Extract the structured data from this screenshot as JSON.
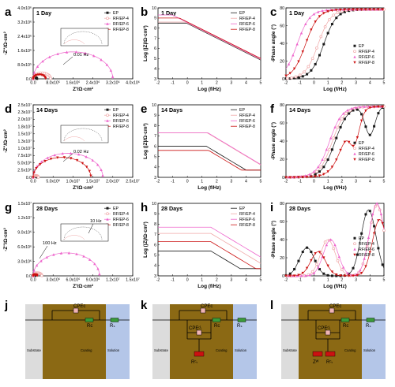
{
  "panel_letters": [
    "a",
    "b",
    "c",
    "d",
    "e",
    "f",
    "g",
    "h",
    "i",
    "j",
    "k",
    "l"
  ],
  "legend": [
    "EP",
    "RF/EP-4",
    "RF/EP-6",
    "RF/EP-8"
  ],
  "colors": {
    "EP": "#1a1a1a",
    "RF/EP-4": "#f0a8a8",
    "RF/EP-6": "#ee66cc",
    "RF/EP-8": "#cc1111",
    "substrate": "#dcdcdc",
    "coating": "#8b6914",
    "solution": "#b4c6e8",
    "resistor": "#3a9a3a",
    "cap_fill": "#f0b4b4"
  },
  "nyquist_ticks": {
    "a": {
      "x": [
        "0.0",
        "8.0x10⁵",
        "1.6x10⁶",
        "2.4x10⁶",
        "3.2x10⁶",
        "4.0x10⁶"
      ],
      "y": [
        "0.0",
        "8.0x10⁵",
        "1.6x10⁶",
        "2.4x10⁶",
        "3.2x10⁶",
        "4.0x10⁶"
      ]
    },
    "d": {
      "x": [
        "0.0",
        "5.0x10⁶",
        "1.0x10⁷",
        "1.5x10⁷",
        "2.0x10⁷",
        "2.5x10⁷"
      ],
      "y": [
        "0.0",
        "2.5x10⁶",
        "5.0x10⁶",
        "7.5x10⁶",
        "1.0x10⁷",
        "1.3x10⁷",
        "1.5x10⁷",
        "1.8x10⁷",
        "2.0x10⁷",
        "2.3x10⁷",
        "2.5x10⁷"
      ]
    },
    "g": {
      "x": [
        "0.0",
        "3.0x10⁶",
        "6.0x10⁶",
        "9.0x10⁶",
        "1.2x10⁷",
        "1.5x10⁷"
      ],
      "y": [
        "0.0",
        "3.0x10⁶",
        "6.0x10⁶",
        "9.0x10⁶",
        "1.2x10⁷",
        "1.5x10⁷"
      ]
    }
  },
  "bode_ticks": {
    "x": [
      "-2",
      "-1",
      "0",
      "1",
      "2",
      "3",
      "4",
      "5"
    ],
    "mod_y": [
      "3",
      "4",
      "5",
      "6",
      "7",
      "8",
      "9",
      "10"
    ],
    "phase_y": [
      "0",
      "20",
      "40",
      "60",
      "80"
    ]
  },
  "axis_labels": {
    "nyq_x": "Z'/Ω·cm²",
    "nyq_y": "-Z''/Ω·cm²",
    "bode_x": "Log (f/Hz)",
    "bode_mod_y": "Log (|Z|/Ω·cm²)",
    "bode_phase_y": "-Phase angle (°)"
  },
  "annotations": {
    "a": "0.01 Hz",
    "d": "0.02 Hz",
    "g1": "100 Hz",
    "g2": "10 Hz"
  },
  "circuits": {
    "j": {
      "labels": [
        "CPEᴄ",
        "Rᴄ",
        "Rₛ",
        "Substrate",
        "Coating",
        "Solution"
      ]
    },
    "k": {
      "labels": [
        "CPEᴄ",
        "CPEᵈₗ",
        "Rᴄ",
        "Rₛ",
        "Rᶜₜ",
        "Substrate",
        "Coating",
        "Solution"
      ]
    },
    "l": {
      "labels": [
        "CPEᴄ",
        "CPEᵈₗ",
        "Rᴄ",
        "Rₛ",
        "Zᵂ",
        "Rᶜₜ",
        "Substrate",
        "Coating",
        "Solution"
      ]
    }
  },
  "chart_data": [
    {
      "panel": "a",
      "type": "scatter",
      "title": "1 Day",
      "xlabel": "Z'/Ω·cm²",
      "ylabel": "-Z''/Ω·cm²",
      "xlim": [
        0,
        4000000
      ],
      "ylim": [
        0,
        4000000
      ],
      "series": [
        {
          "name": "EP",
          "diameter": 150000
        },
        {
          "name": "RF/EP-4",
          "diameter": 700000
        },
        {
          "name": "RF/EP-6",
          "diameter": 3200000
        },
        {
          "name": "RF/EP-8",
          "diameter": 500000
        }
      ]
    },
    {
      "panel": "b",
      "type": "line",
      "title": "1 Day",
      "xlabel": "Log (f/Hz)",
      "ylabel": "Log (|Z|/Ω·cm²)",
      "xlim": [
        -2,
        5
      ],
      "ylim": [
        3,
        10
      ],
      "series": [
        {
          "name": "EP",
          "plateau": 8.5
        },
        {
          "name": "RF/EP-4",
          "plateau": 8.6
        },
        {
          "name": "RF/EP-6",
          "plateau": 9.3
        },
        {
          "name": "RF/EP-8",
          "plateau": 9.0
        }
      ]
    },
    {
      "panel": "c",
      "type": "line",
      "title": "1 Day",
      "xlabel": "Log (f/Hz)",
      "ylabel": "-Phase angle (°)",
      "xlim": [
        -2,
        5
      ],
      "ylim": [
        0,
        90
      ],
      "series": [
        {
          "name": "EP",
          "rise_center": 0.7
        },
        {
          "name": "RF/EP-4",
          "rise_center": 0.3
        },
        {
          "name": "RF/EP-6",
          "rise_center": -1.2
        },
        {
          "name": "RF/EP-8",
          "rise_center": -0.6
        }
      ]
    },
    {
      "panel": "d",
      "type": "scatter",
      "title": "14 Days",
      "xlabel": "Z'/Ω·cm²",
      "ylabel": "-Z''/Ω·cm²",
      "xlim": [
        0,
        25000000
      ],
      "ylim": [
        0,
        25000000
      ],
      "series": [
        {
          "name": "EP",
          "diameter": 900000
        },
        {
          "name": "RF/EP-4",
          "diameter": 1300000
        },
        {
          "name": "RF/EP-6",
          "diameter": 17500000
        },
        {
          "name": "RF/EP-8",
          "diameter": 14500000
        }
      ]
    },
    {
      "panel": "e",
      "type": "line",
      "title": "14 Days",
      "xlabel": "Log (f/Hz)",
      "ylabel": "Log (|Z|/Ω·cm²)",
      "xlim": [
        -2,
        5
      ],
      "ylim": [
        3,
        10
      ],
      "series": [
        {
          "name": "EP",
          "plateau": 6.0
        },
        {
          "name": "RF/EP-4",
          "plateau": 7.3
        },
        {
          "name": "RF/EP-6",
          "plateau": 7.3
        },
        {
          "name": "RF/EP-8",
          "plateau": 5.6
        }
      ]
    },
    {
      "panel": "f",
      "type": "line",
      "title": "14 Days",
      "xlabel": "Log (f/Hz)",
      "ylabel": "-Phase angle (°)",
      "xlim": [
        -2,
        5
      ],
      "ylim": [
        0,
        90
      ],
      "series": [
        {
          "name": "EP",
          "rise_center": 1.5,
          "dip_at": 4.0
        },
        {
          "name": "RF/EP-4",
          "rise_center": 1.3
        },
        {
          "name": "RF/EP-6",
          "rise_center": 1.1
        },
        {
          "name": "RF/EP-8",
          "rise_center": 2.1,
          "dip_at": 2.9
        }
      ]
    },
    {
      "panel": "g",
      "type": "scatter",
      "title": "28 Days",
      "xlabel": "Z'/Ω·cm²",
      "ylabel": "-Z''/Ω·cm²",
      "xlim": [
        0,
        15000000
      ],
      "ylim": [
        0,
        15000000
      ],
      "series": [
        {
          "name": "EP",
          "diameter": 250000
        },
        {
          "name": "RF/EP-4",
          "diameter": 1300000
        },
        {
          "name": "RF/EP-6",
          "diameter": 10000000
        },
        {
          "name": "RF/EP-8",
          "diameter": 600000
        }
      ]
    },
    {
      "panel": "h",
      "type": "line",
      "title": "28 Days",
      "xlabel": "Log (f/Hz)",
      "ylabel": "Log (|Z|/Ω·cm²)",
      "xlim": [
        -2,
        5
      ],
      "ylim": [
        3,
        10
      ],
      "series": [
        {
          "name": "EP",
          "plateau": 5.4
        },
        {
          "name": "RF/EP-4",
          "plateau": 7.1
        },
        {
          "name": "RF/EP-6",
          "plateau": 7.7
        },
        {
          "name": "RF/EP-8",
          "plateau": 6.3
        }
      ]
    },
    {
      "panel": "i",
      "type": "line",
      "title": "28 Days",
      "xlabel": "Log (f/Hz)",
      "ylabel": "-Phase angle (°)",
      "xlim": [
        -2,
        5
      ],
      "ylim": [
        0,
        90
      ],
      "series": [
        {
          "name": "EP",
          "peaks": [
            [
              -0.5,
              35
            ],
            [
              3.9,
              82
            ]
          ]
        },
        {
          "name": "RF/EP-4",
          "peaks": [
            [
              1.0,
              45
            ],
            [
              4.5,
              88
            ]
          ]
        },
        {
          "name": "RF/EP-6",
          "peaks": [
            [
              1.2,
              45
            ],
            [
              4.5,
              90
            ]
          ]
        },
        {
          "name": "RF/EP-8",
          "peaks": [
            [
              0.3,
              30
            ],
            [
              4.7,
              70
            ]
          ]
        }
      ]
    }
  ]
}
